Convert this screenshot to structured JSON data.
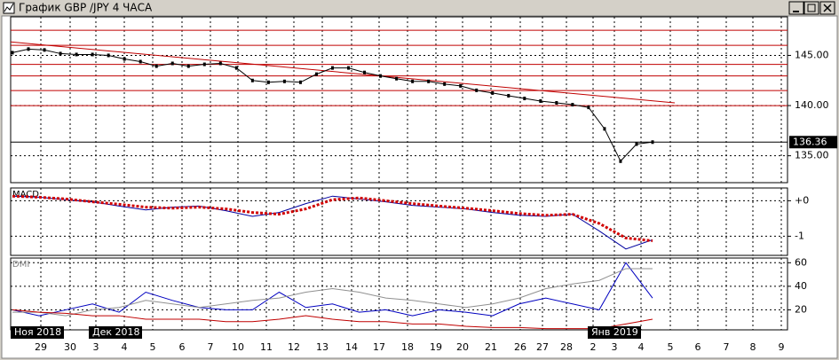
{
  "window_title": "График GBP /JPY  4 ЧАСА",
  "x_axis": {
    "day_labels": [
      "29",
      "30",
      "3",
      "4",
      "5",
      "6",
      "7",
      "10",
      "11",
      "12",
      "13",
      "14",
      "17",
      "18",
      "19",
      "20",
      "21",
      "26",
      "27",
      "28",
      "2",
      "3",
      "4",
      "5",
      "6",
      "7",
      "8",
      "9"
    ],
    "month_labels": [
      "Ноя 2018",
      "Дек 2018",
      "Янв 2019"
    ]
  },
  "chart_data": [
    {
      "type": "line",
      "color": "#000000",
      "series": [
        {
          "values": [
            145.27,
            145.63,
            145.54,
            145.18,
            145.09,
            145.09,
            145.0,
            144.64,
            144.38,
            143.93,
            144.2,
            143.93,
            144.11,
            144.2,
            143.75,
            142.5,
            142.32,
            142.41,
            142.32,
            143.13,
            143.75,
            143.75,
            143.3,
            142.95,
            142.68,
            142.41,
            142.41,
            142.14,
            141.96,
            141.52,
            141.25,
            140.98,
            140.71,
            140.45,
            140.27,
            140.09,
            139.82,
            137.68,
            134.46,
            136.16,
            136.36
          ],
          "color": "#000000"
        }
      ],
      "last_price": {
        "value": 136.36,
        "label": "136.36"
      },
      "levels": [
        147.5,
        146.0,
        144.1,
        142.95,
        141.5,
        140.0
      ],
      "level_color": "#c00000",
      "trendline": [
        146.34,
        140.27
      ],
      "ylim": [
        132.32,
        148.84
      ],
      "yticks": [
        {
          "value": 135,
          "label": "135.00"
        },
        {
          "value": 140,
          "label": "140.00"
        },
        {
          "value": 145,
          "label": "145.00"
        }
      ],
      "grid": true
    },
    {
      "type": "line",
      "title": "MACD",
      "series": [
        {
          "values": [
            0.13,
            0.1,
            0.03,
            -0.03,
            -0.15,
            -0.26,
            -0.18,
            -0.15,
            -0.28,
            -0.44,
            -0.33,
            -0.08,
            0.13,
            0.05,
            -0.03,
            -0.13,
            -0.18,
            -0.23,
            -0.33,
            -0.41,
            -0.44,
            -0.38,
            -0.85,
            -1.36,
            -1.1
          ],
          "color": "#0000a0"
        },
        {
          "values": [
            0.13,
            0.1,
            0.05,
            -0.03,
            -0.1,
            -0.18,
            -0.21,
            -0.18,
            -0.23,
            -0.33,
            -0.38,
            -0.23,
            0.03,
            0.08,
            0,
            -0.08,
            -0.15,
            -0.21,
            -0.28,
            -0.36,
            -0.41,
            -0.38,
            -0.64,
            -1.05,
            -1.13
          ],
          "color": "#d00000",
          "dotted": true
        }
      ],
      "ylim": [
        -1.54,
        0.36
      ],
      "yticks": [
        {
          "value": 0,
          "label": "+0"
        },
        -1
      ],
      "grid": true
    },
    {
      "type": "line",
      "title": "DMI",
      "series": [
        {
          "values": [
            20,
            15,
            20,
            25,
            18,
            35,
            28,
            22,
            20,
            20,
            35,
            22,
            25,
            18,
            20,
            15,
            20,
            18,
            15,
            25,
            30,
            25,
            20,
            60,
            30
          ],
          "color": "#0000c0"
        },
        {
          "values": [
            18,
            18,
            15,
            20,
            22,
            28,
            25,
            22,
            25,
            28,
            30,
            35,
            38,
            35,
            30,
            28,
            25,
            22,
            25,
            30,
            38,
            42,
            45,
            55,
            55
          ],
          "color": "#909090"
        },
        {
          "values": [
            20,
            18,
            17,
            15,
            15,
            12,
            12,
            12,
            10,
            10,
            12,
            15,
            12,
            10,
            10,
            8,
            8,
            6,
            5,
            5,
            4,
            4,
            4,
            8,
            12
          ],
          "color": "#c00000"
        }
      ],
      "ylim": [
        3,
        64
      ],
      "yticks": [
        20,
        40,
        60
      ],
      "grid": true
    }
  ]
}
